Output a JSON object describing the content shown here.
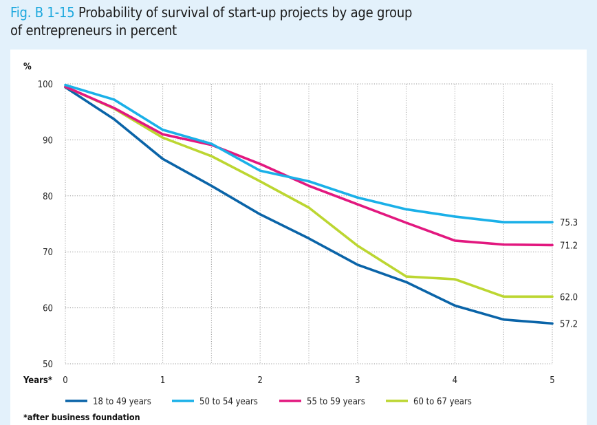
{
  "figure": {
    "label": "Fig. B 1-15",
    "title_line1": "Probability of survival of start-up projects by age group",
    "title_line2": "of entrepreneurs in percent"
  },
  "chart_data": {
    "type": "line",
    "title": "Probability of survival of start-up projects by age group of entrepreneurs in percent",
    "xlabel": "Years*",
    "ylabel": "%",
    "x": [
      0,
      0.5,
      1,
      1.5,
      2,
      2.5,
      3,
      3.5,
      4,
      4.5,
      5
    ],
    "xticks": [
      "0",
      "1",
      "2",
      "3",
      "4",
      "5"
    ],
    "yticks": [
      "50",
      "60",
      "70",
      "80",
      "90",
      "100"
    ],
    "xlim": [
      0,
      5
    ],
    "ylim": [
      50,
      100
    ],
    "grid": true,
    "legend_position": "bottom",
    "series": [
      {
        "name": "18 to 49 years",
        "color": "#0a64a8",
        "values": [
          99.4,
          93.7,
          86.6,
          81.8,
          76.7,
          72.4,
          67.7,
          64.6,
          60.4,
          57.9,
          57.2
        ],
        "end_label": "57.2"
      },
      {
        "name": "50 to 54 years",
        "color": "#1ab0e8",
        "values": [
          99.8,
          97.2,
          91.8,
          89.3,
          84.5,
          82.6,
          79.7,
          77.6,
          76.3,
          75.3,
          75.3
        ],
        "end_label": "75.3"
      },
      {
        "name": "55 to 59 years",
        "color": "#e2187f",
        "values": [
          99.5,
          95.7,
          91.0,
          89.1,
          85.7,
          81.8,
          78.5,
          75.2,
          72.0,
          71.3,
          71.2
        ],
        "end_label": "71.2"
      },
      {
        "name": "60 to 67 years",
        "color": "#bcd631",
        "values": [
          99.5,
          95.6,
          90.4,
          87.1,
          82.6,
          77.9,
          71.1,
          65.6,
          65.1,
          62.0,
          62.0
        ],
        "end_label": "62.0"
      }
    ],
    "footnote": "*after business foundation"
  }
}
